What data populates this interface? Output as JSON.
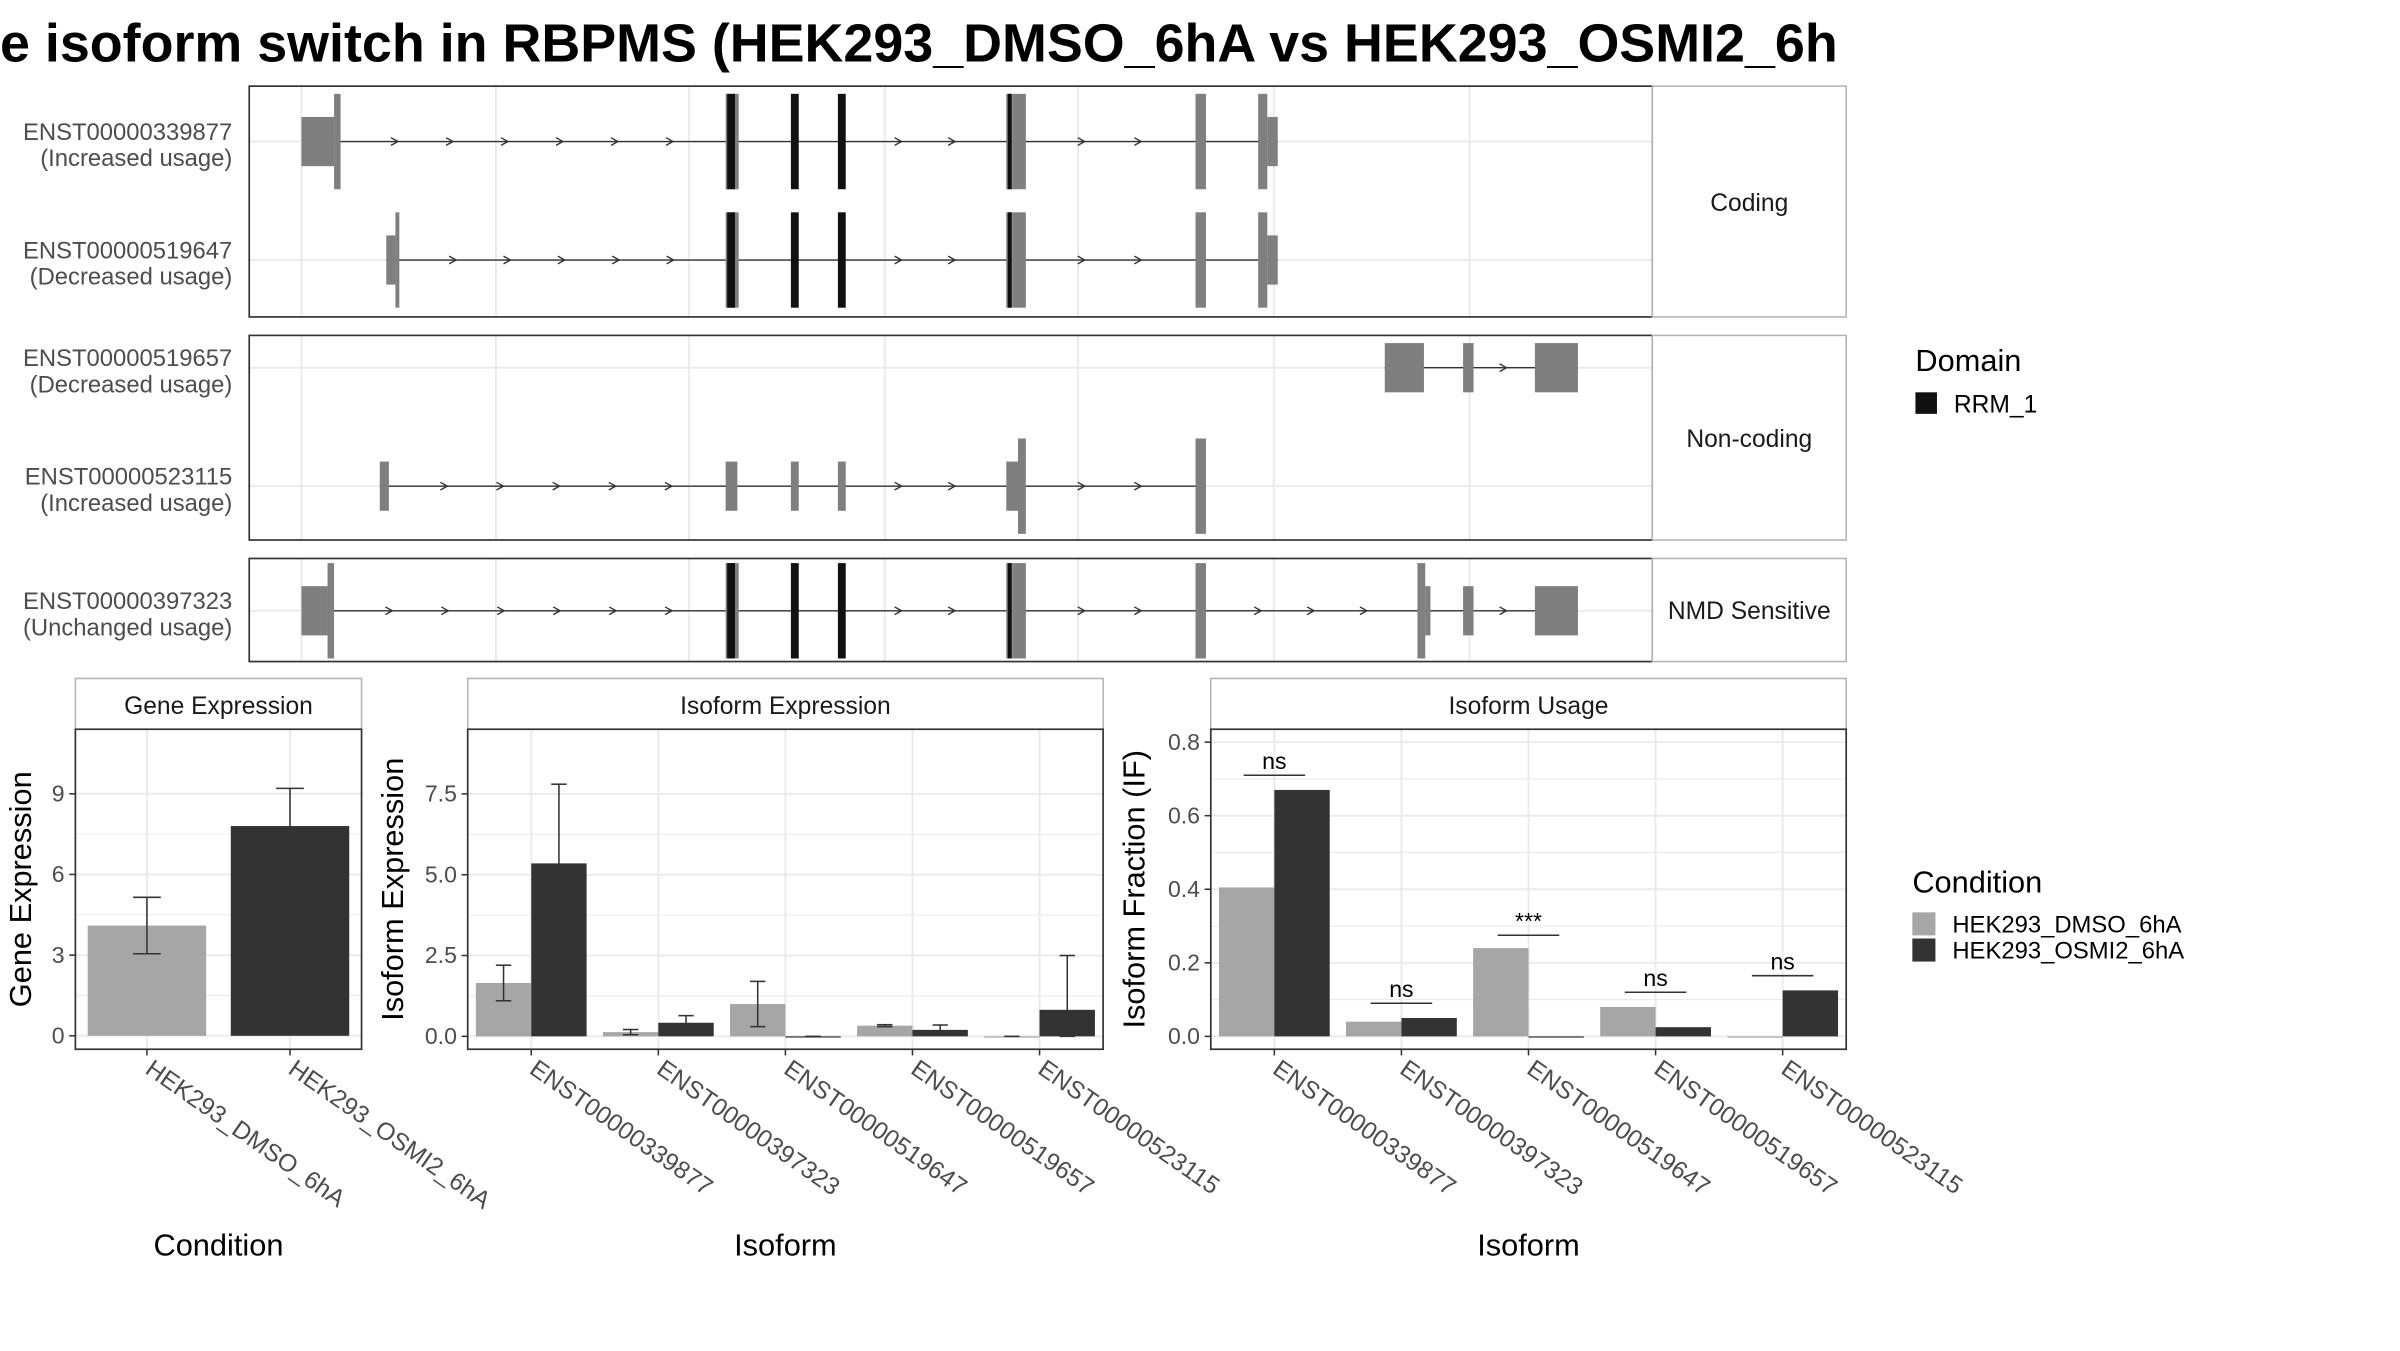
{
  "title": "e isoform switch in RBPMS (HEK293_DMSO_6hA vs HEK293_OSMI2_6h",
  "colors": {
    "dmso": "#a6a6a6",
    "osmi2": "#333333",
    "exon": "#7f7f7f",
    "domain": "#111111",
    "grid": "#ebebeb",
    "strip_border": "#b3b3b3",
    "panel_border": "#333333"
  },
  "legends": {
    "domain": {
      "title": "Domain",
      "items": [
        {
          "label": "RRM_1",
          "color": "#111111"
        }
      ]
    },
    "condition": {
      "title": "Condition",
      "items": [
        {
          "label": "HEK293_DMSO_6hA",
          "color": "#a6a6a6"
        },
        {
          "label": "HEK293_OSMI2_6hA",
          "color": "#333333"
        }
      ]
    }
  },
  "chart_data": [
    {
      "type": "gene_structure",
      "facets": [
        {
          "label": "Coding",
          "transcripts": [
            {
              "id": "ENST00000339877",
              "usage": "(Increased usage)",
              "exons": [
                [
                  0.5,
                  3.0,
                  "utr"
                ],
                [
                  3.0,
                  3.5,
                  "cds"
                ],
                [
                  33.0,
                  34.0,
                  "cds_dom"
                ],
                [
                  38.0,
                  38.6,
                  "dom"
                ],
                [
                  41.6,
                  42.2,
                  "dom"
                ],
                [
                  54.5,
                  55.0,
                  "cds_dom"
                ],
                [
                  55.0,
                  56.0,
                  "cds"
                ],
                [
                  69.0,
                  69.8,
                  "cds"
                ],
                [
                  73.8,
                  74.5,
                  "cds"
                ],
                [
                  74.5,
                  75.3,
                  "utr"
                ]
              ]
            },
            {
              "id": "ENST00000519647",
              "usage": "(Decreased usage)",
              "exons": [
                [
                  7.0,
                  7.7,
                  "utr"
                ],
                [
                  7.7,
                  8.0,
                  "cds"
                ],
                [
                  33.0,
                  34.0,
                  "cds_dom"
                ],
                [
                  38.0,
                  38.6,
                  "dom"
                ],
                [
                  41.6,
                  42.2,
                  "dom"
                ],
                [
                  54.5,
                  55.0,
                  "cds_dom"
                ],
                [
                  55.0,
                  56.0,
                  "cds"
                ],
                [
                  69.0,
                  69.8,
                  "cds"
                ],
                [
                  73.8,
                  74.5,
                  "cds"
                ],
                [
                  74.5,
                  75.3,
                  "utr"
                ]
              ]
            }
          ]
        },
        {
          "label": "Non-coding",
          "transcripts": [
            {
              "id": "ENST00000519657",
              "usage": "(Decreased usage)",
              "exons": [
                [
                  83.5,
                  86.5,
                  "nc"
                ],
                [
                  89.5,
                  90.3,
                  "nc"
                ],
                [
                  95.0,
                  98.3,
                  "nc"
                ]
              ]
            },
            {
              "id": "ENST00000523115",
              "usage": "(Increased usage)",
              "exons": [
                [
                  6.5,
                  7.2,
                  "nc"
                ],
                [
                  33.0,
                  33.9,
                  "nc"
                ],
                [
                  38.0,
                  38.6,
                  "nc"
                ],
                [
                  41.6,
                  42.2,
                  "nc"
                ],
                [
                  54.5,
                  55.4,
                  "nc"
                ],
                [
                  55.4,
                  56.0,
                  "nc_tall"
                ],
                [
                  69.0,
                  69.8,
                  "nc_tall"
                ]
              ]
            }
          ]
        },
        {
          "label": "NMD Sensitive",
          "transcripts": [
            {
              "id": "ENST00000397323",
              "usage": "(Unchanged usage)",
              "exons": [
                [
                  0.5,
                  2.5,
                  "utr"
                ],
                [
                  2.5,
                  3.0,
                  "cds"
                ],
                [
                  33.0,
                  34.0,
                  "cds_dom"
                ],
                [
                  38.0,
                  38.6,
                  "dom"
                ],
                [
                  41.6,
                  42.2,
                  "dom"
                ],
                [
                  54.5,
                  55.0,
                  "cds_dom"
                ],
                [
                  55.0,
                  56.0,
                  "cds"
                ],
                [
                  69.0,
                  69.8,
                  "cds"
                ],
                [
                  86.0,
                  86.6,
                  "cds"
                ],
                [
                  86.6,
                  87.0,
                  "utr"
                ],
                [
                  89.5,
                  90.3,
                  "utr"
                ],
                [
                  95.0,
                  98.3,
                  "utr"
                ]
              ]
            }
          ]
        }
      ]
    },
    {
      "type": "bar",
      "title": "Gene Expression",
      "xlabel": "Condition",
      "ylabel": "Gene Expression",
      "ylim": [
        -0.5,
        11.4
      ],
      "yticks": [
        0,
        3,
        6,
        9
      ],
      "categories": [
        "HEK293_DMSO_6hA",
        "HEK293_OSMI2_6hA"
      ],
      "values": [
        4.1,
        7.8
      ],
      "errors": [
        [
          3.05,
          5.15
        ],
        [
          6.45,
          9.2
        ]
      ]
    },
    {
      "type": "bar",
      "title": "Isoform Expression",
      "xlabel": "Isoform",
      "ylabel": "Isoform Expression",
      "ylim": [
        -0.4,
        9.5
      ],
      "yticks": [
        0.0,
        2.5,
        5.0,
        7.5
      ],
      "categories": [
        "ENST00000339877",
        "ENST00000397323",
        "ENST00000519647",
        "ENST00000519657",
        "ENST00000523115"
      ],
      "series": [
        {
          "name": "HEK293_DMSO_6hA",
          "values": [
            1.65,
            0.13,
            1.0,
            0.33,
            0.0
          ],
          "errors": [
            [
              1.1,
              2.2
            ],
            [
              0.05,
              0.21
            ],
            [
              0.3,
              1.7
            ],
            [
              0.3,
              0.36
            ],
            [
              0.0,
              0.0
            ]
          ]
        },
        {
          "name": "HEK293_OSMI2_6hA",
          "values": [
            5.35,
            0.42,
            0.0,
            0.2,
            0.82
          ],
          "errors": [
            [
              2.9,
              7.8
            ],
            [
              0.2,
              0.64
            ],
            [
              0.0,
              0.0
            ],
            [
              0.05,
              0.35
            ],
            [
              0.0,
              2.5
            ]
          ]
        }
      ]
    },
    {
      "type": "bar",
      "title": "Isoform Usage",
      "xlabel": "Isoform",
      "ylabel": "Isoform Fraction (IF)",
      "ylim": [
        -0.035,
        0.835
      ],
      "yticks": [
        0.0,
        0.2,
        0.4,
        0.6,
        0.8
      ],
      "categories": [
        "ENST00000339877",
        "ENST00000397323",
        "ENST00000519647",
        "ENST00000519657",
        "ENST00000523115"
      ],
      "series": [
        {
          "name": "HEK293_DMSO_6hA",
          "values": [
            0.405,
            0.04,
            0.24,
            0.08,
            0.0
          ]
        },
        {
          "name": "HEK293_OSMI2_6hA",
          "values": [
            0.67,
            0.05,
            0.0,
            0.025,
            0.125
          ]
        }
      ],
      "significance": [
        "ns",
        "ns",
        "***",
        "ns",
        "ns"
      ],
      "sig_y": [
        0.71,
        0.09,
        0.275,
        0.12,
        0.165
      ]
    }
  ]
}
